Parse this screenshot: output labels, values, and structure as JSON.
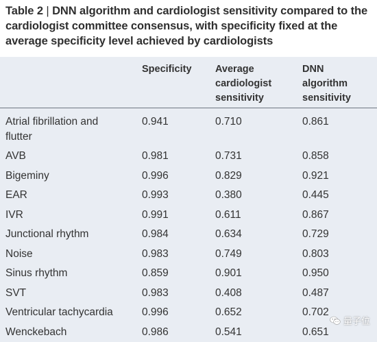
{
  "caption": {
    "label": "Table 2",
    "separator": " | ",
    "text": "DNN algorithm and cardiologist sensitivity compared to the cardiologist committee consensus, with specificity fixed at the average specificity level achieved by cardiologists"
  },
  "table": {
    "headers": [
      "",
      "Specificity",
      "Average\ncardiologist\nsensitivity",
      "DNN\nalgorithm\nsensitivity"
    ],
    "rows": [
      [
        "Atrial fibrillation and\nflutter",
        "0.941",
        "0.710",
        "0.861"
      ],
      [
        "AVB",
        "0.981",
        "0.731",
        "0.858"
      ],
      [
        "Bigeminy",
        "0.996",
        "0.829",
        "0.921"
      ],
      [
        "EAR",
        "0.993",
        "0.380",
        "0.445"
      ],
      [
        "IVR",
        "0.991",
        "0.611",
        "0.867"
      ],
      [
        "Junctional rhythm",
        "0.984",
        "0.634",
        "0.729"
      ],
      [
        "Noise",
        "0.983",
        "0.749",
        "0.803"
      ],
      [
        "Sinus rhythm",
        "0.859",
        "0.901",
        "0.950"
      ],
      [
        "SVT",
        "0.983",
        "0.408",
        "0.487"
      ],
      [
        "Ventricular tachycardia",
        "0.996",
        "0.652",
        "0.702"
      ],
      [
        "Wenckebach",
        "0.986",
        "0.541",
        "0.651"
      ]
    ]
  },
  "watermark": {
    "text": "量子位",
    "icon": "wechat-icon"
  }
}
